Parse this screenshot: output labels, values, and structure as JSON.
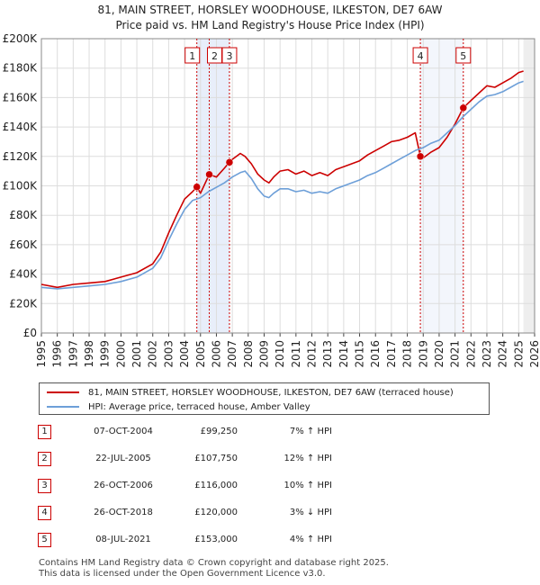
{
  "chart_data": {
    "type": "line",
    "title": "81, MAIN STREET, HORSLEY WOODHOUSE, ILKESTON, DE7 6AW",
    "subtitle": "Price paid vs. HM Land Registry's House Price Index (HPI)",
    "xlabel": "",
    "ylabel": "",
    "xlim": [
      1995,
      2026
    ],
    "ylim": [
      0,
      200000
    ],
    "x_ticks": [
      "1995",
      "1996",
      "1997",
      "1998",
      "1999",
      "2000",
      "2001",
      "2002",
      "2003",
      "2004",
      "2005",
      "2006",
      "2007",
      "2008",
      "2009",
      "2010",
      "2011",
      "2012",
      "2013",
      "2014",
      "2015",
      "2016",
      "2017",
      "2018",
      "2019",
      "2020",
      "2021",
      "2022",
      "2023",
      "2024",
      "2025",
      "2026"
    ],
    "y_ticks": [
      "£0",
      "£20K",
      "£40K",
      "£60K",
      "£80K",
      "£100K",
      "£120K",
      "£140K",
      "£160K",
      "£180K",
      "£200K"
    ],
    "grid": true,
    "series": [
      {
        "name": "81, MAIN STREET, HORSLEY WOODHOUSE, ILKESTON, DE7 6AW (terraced house)",
        "color": "#cc0000",
        "x": [
          1995.0,
          1996.0,
          1997.0,
          1998.0,
          1999.0,
          2000.0,
          2001.0,
          2002.0,
          2002.5,
          2003.0,
          2003.5,
          2004.0,
          2004.5,
          2004.77,
          2005.0,
          2005.55,
          2006.0,
          2006.5,
          2006.82,
          2007.0,
          2007.5,
          2007.8,
          2008.2,
          2008.6,
          2009.0,
          2009.3,
          2009.6,
          2010.0,
          2010.5,
          2011.0,
          2011.5,
          2012.0,
          2012.5,
          2013.0,
          2013.5,
          2014.0,
          2014.5,
          2015.0,
          2015.5,
          2016.0,
          2016.5,
          2017.0,
          2017.5,
          2018.0,
          2018.5,
          2018.82,
          2019.0,
          2019.5,
          2020.0,
          2020.5,
          2021.0,
          2021.52,
          2022.0,
          2022.5,
          2023.0,
          2023.5,
          2024.0,
          2024.5,
          2025.0,
          2025.3
        ],
        "values": [
          33000,
          31000,
          33000,
          34000,
          35000,
          38000,
          41000,
          47000,
          55000,
          68000,
          80000,
          91000,
          96000,
          99250,
          95000,
          107750,
          106000,
          112000,
          116000,
          118000,
          122000,
          120000,
          115000,
          108000,
          104000,
          102000,
          106000,
          110000,
          111000,
          108000,
          110000,
          107000,
          109000,
          107000,
          111000,
          113000,
          115000,
          117000,
          121000,
          124000,
          127000,
          130000,
          131000,
          133000,
          136000,
          120000,
          119000,
          123000,
          126000,
          133000,
          142000,
          153000,
          158000,
          163000,
          168000,
          167000,
          170000,
          173000,
          177000,
          178000
        ]
      },
      {
        "name": "HPI: Average price, terraced house, Amber Valley",
        "color": "#6d9fd8",
        "x": [
          1995.0,
          1996.0,
          1997.0,
          1998.0,
          1999.0,
          2000.0,
          2001.0,
          2002.0,
          2002.5,
          2003.0,
          2003.5,
          2004.0,
          2004.5,
          2005.0,
          2005.5,
          2006.0,
          2006.5,
          2007.0,
          2007.5,
          2007.8,
          2008.2,
          2008.6,
          2009.0,
          2009.3,
          2009.6,
          2010.0,
          2010.5,
          2011.0,
          2011.5,
          2012.0,
          2012.5,
          2013.0,
          2013.5,
          2014.0,
          2014.5,
          2015.0,
          2015.5,
          2016.0,
          2016.5,
          2017.0,
          2017.5,
          2018.0,
          2018.5,
          2019.0,
          2019.5,
          2020.0,
          2020.5,
          2021.0,
          2021.5,
          2022.0,
          2022.5,
          2023.0,
          2023.5,
          2024.0,
          2024.5,
          2025.0,
          2025.3
        ],
        "values": [
          31000,
          30000,
          31000,
          32000,
          33000,
          35000,
          38000,
          44000,
          51000,
          63000,
          74000,
          84000,
          90000,
          92000,
          96000,
          99000,
          102000,
          106000,
          109000,
          110000,
          105000,
          98000,
          93000,
          92000,
          95000,
          98000,
          98000,
          96000,
          97000,
          95000,
          96000,
          95000,
          98000,
          100000,
          102000,
          104000,
          107000,
          109000,
          112000,
          115000,
          118000,
          121000,
          124000,
          126000,
          129000,
          131000,
          136000,
          141000,
          147000,
          152000,
          157000,
          161000,
          162000,
          164000,
          167000,
          170000,
          171000
        ]
      }
    ],
    "sales": [
      {
        "label": "1",
        "x": 2004.77,
        "value": 99250
      },
      {
        "label": "2",
        "x": 2005.55,
        "value": 107750
      },
      {
        "label": "3",
        "x": 2006.82,
        "value": 116000
      },
      {
        "label": "4",
        "x": 2018.82,
        "value": 120000
      },
      {
        "label": "5",
        "x": 2021.52,
        "value": 153000
      }
    ],
    "shaded_span": [
      2004.77,
      2006.82
    ]
  },
  "legend": {
    "property_label": "81, MAIN STREET, HORSLEY WOODHOUSE, ILKESTON, DE7 6AW (terraced house)",
    "hpi_label": "HPI: Average price, terraced house, Amber Valley"
  },
  "transactions": [
    {
      "num": "1",
      "date": "07-OCT-2004",
      "price": "£99,250",
      "hpi": "7% ↑ HPI"
    },
    {
      "num": "2",
      "date": "22-JUL-2005",
      "price": "£107,750",
      "hpi": "12% ↑ HPI"
    },
    {
      "num": "3",
      "date": "26-OCT-2006",
      "price": "£116,000",
      "hpi": "10% ↑ HPI"
    },
    {
      "num": "4",
      "date": "26-OCT-2018",
      "price": "£120,000",
      "hpi": "3% ↓ HPI"
    },
    {
      "num": "5",
      "date": "08-JUL-2021",
      "price": "£153,000",
      "hpi": "4% ↑ HPI"
    }
  ],
  "footer": {
    "line1": "Contains HM Land Registry data © Crown copyright and database right 2025.",
    "line2": "This data is licensed under the Open Government Licence v3.0."
  }
}
